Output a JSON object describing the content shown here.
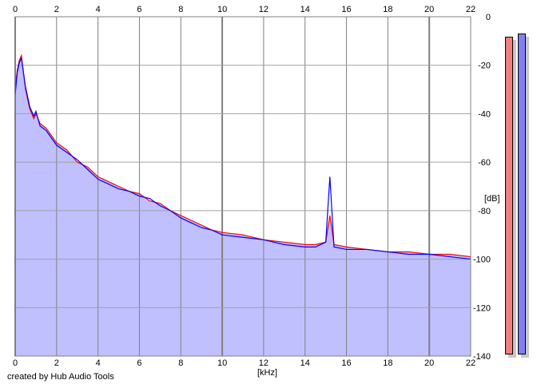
{
  "app": {
    "credit": "created by Hub Audio Tools"
  },
  "chart_data": {
    "type": "line",
    "xlabel": "[kHz]",
    "ylabel": "[dB]",
    "xlim": [
      0,
      22
    ],
    "ylim": [
      -140,
      0
    ],
    "x_ticks": [
      "0",
      "2",
      "4",
      "6",
      "8",
      "10",
      "12",
      "14",
      "16",
      "18",
      "20",
      "22"
    ],
    "y_ticks": [
      "0",
      "-20",
      "-40",
      "-60",
      "-80",
      "-100",
      "-120",
      "-140"
    ],
    "grid": true,
    "series": [
      {
        "color": "#ff0000",
        "x": [
          0,
          0.1,
          0.2,
          0.3,
          0.5,
          0.7,
          0.9,
          1.0,
          1.2,
          1.5,
          2.0,
          2.5,
          3.0,
          3.5,
          4.0,
          4.5,
          5.0,
          5.5,
          6.0,
          6.5,
          7.0,
          7.5,
          8.0,
          8.5,
          9.0,
          9.5,
          10.0,
          11.0,
          12.0,
          13.0,
          14.0,
          14.5,
          15.0,
          15.2,
          15.4,
          16.0,
          17.0,
          18.0,
          19.0,
          20.0,
          21.0,
          22.0
        ],
        "y": [
          -30,
          -22,
          -18,
          -16,
          -30,
          -38,
          -42,
          -40,
          -44,
          -46,
          -52,
          -55,
          -60,
          -62,
          -66,
          -68,
          -70,
          -72,
          -73,
          -76,
          -77,
          -80,
          -82,
          -84,
          -86,
          -88,
          -89,
          -90,
          -92,
          -93,
          -94,
          -94,
          -93,
          -82,
          -94,
          -95,
          -96,
          -97,
          -97,
          -98,
          -98,
          -99
        ]
      },
      {
        "color": "#0000ff",
        "x": [
          0,
          0.1,
          0.2,
          0.3,
          0.5,
          0.7,
          0.9,
          1.0,
          1.2,
          1.5,
          2.0,
          2.5,
          3.0,
          3.5,
          4.0,
          4.5,
          5.0,
          5.5,
          6.0,
          6.5,
          7.0,
          7.5,
          8.0,
          8.5,
          9.0,
          9.5,
          10.0,
          11.0,
          12.0,
          13.0,
          14.0,
          14.5,
          15.0,
          15.2,
          15.4,
          16.0,
          17.0,
          18.0,
          19.0,
          20.0,
          21.0,
          22.0
        ],
        "y": [
          -32,
          -23,
          -19,
          -17,
          -29,
          -37,
          -41,
          -39,
          -45,
          -47,
          -53,
          -56,
          -59,
          -63,
          -67,
          -69,
          -71,
          -72,
          -74,
          -75,
          -78,
          -80,
          -83,
          -85,
          -87,
          -88,
          -90,
          -91,
          -92,
          -94,
          -95,
          -95,
          -93,
          -66,
          -95,
          -96,
          -96,
          -97,
          -98,
          -98,
          -99,
          -100
        ]
      }
    ],
    "fill_color": "#c0c0ff"
  },
  "meters": [
    {
      "color": "#f08080",
      "level": 0.98
    },
    {
      "color": "#8080f0",
      "level": 0.99
    }
  ]
}
